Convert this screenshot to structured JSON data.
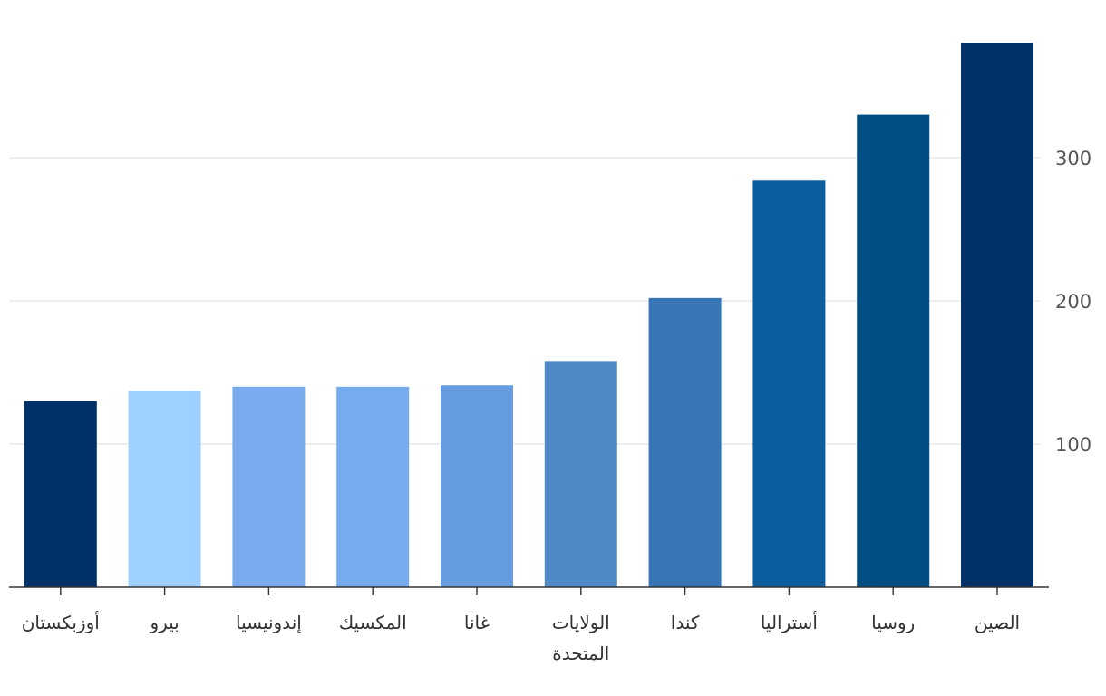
{
  "chart_data": {
    "type": "bar",
    "title": "",
    "xlabel": "",
    "ylabel": "",
    "categories": [
      "الصين",
      "روسيا",
      "أستراليا",
      "كندا",
      "الولايات المتحدة",
      "غانا",
      "المكسيك",
      "إندونيسيا",
      "بيرو",
      "أوزبكستان"
    ],
    "category_lines": [
      [
        "الصين"
      ],
      [
        "روسيا"
      ],
      [
        "أستراليا"
      ],
      [
        "كندا"
      ],
      [
        "الولايات",
        "المتحدة"
      ],
      [
        "غانا"
      ],
      [
        "المكسيك"
      ],
      [
        "إندونيسيا"
      ],
      [
        "بيرو"
      ],
      [
        "أوزبكستان"
      ]
    ],
    "values": [
      380,
      330,
      284,
      202,
      158,
      141,
      140,
      140,
      137,
      130
    ],
    "colors": [
      "#003168",
      "#004e86",
      "#0d5e9e",
      "#3676b6",
      "#4e8ac8",
      "#659de0",
      "#76aced",
      "#7aabee",
      "#9fd1ff",
      "#003168"
    ],
    "ylim": [
      0,
      380
    ],
    "yticks": [
      100,
      200,
      300
    ],
    "y_axis_side": "right",
    "grid": true,
    "legend": "none"
  }
}
